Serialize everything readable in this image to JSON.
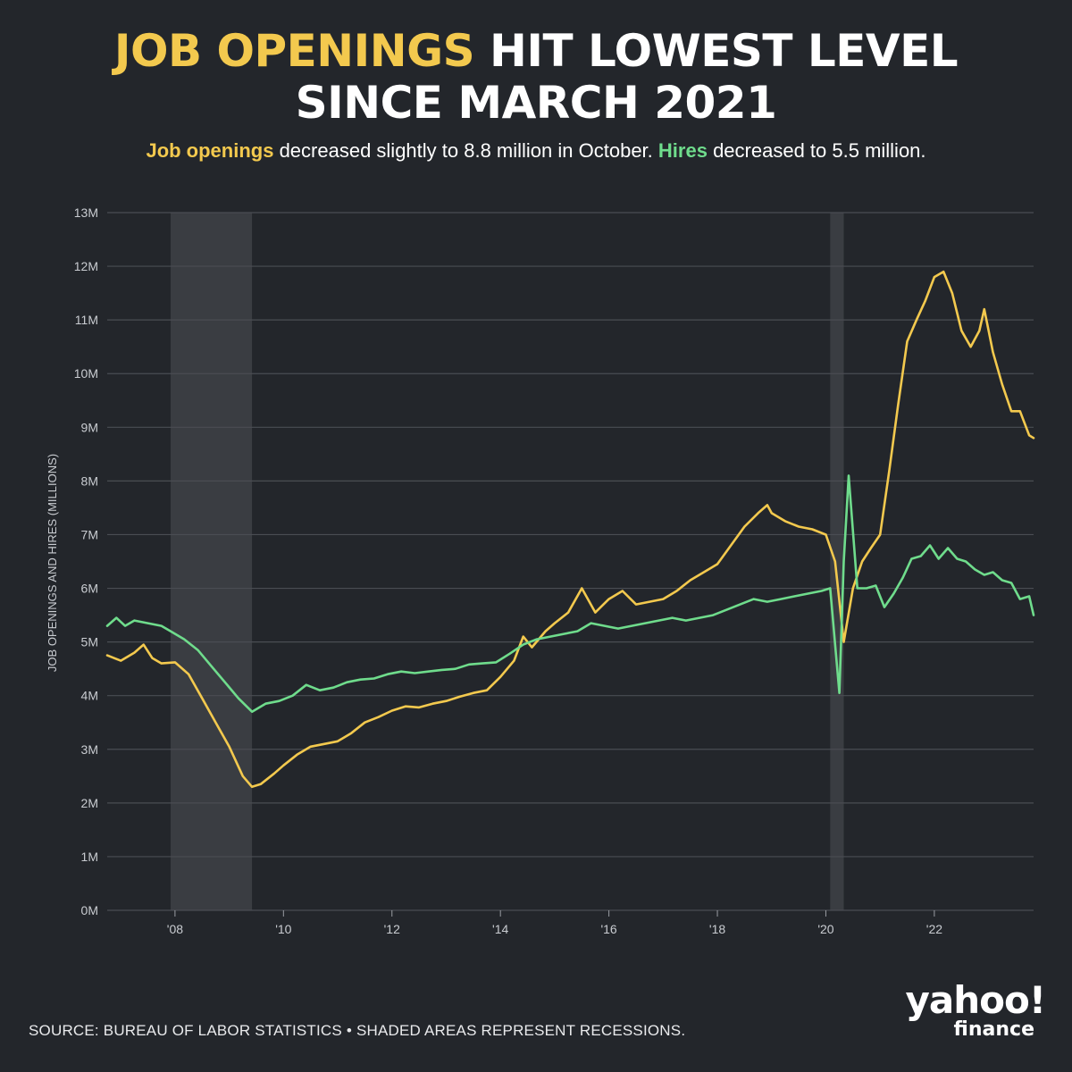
{
  "title": {
    "highlight": "JOB OPENINGS",
    "rest": " HIT LOWEST LEVEL",
    "line2": "SINCE MARCH 2021"
  },
  "subtitle": {
    "jo_label": "Job openings",
    "middle": " decreased slightly to 8.8 million in October. ",
    "hires_label": "Hires",
    "end": " decreased to 5.5 million."
  },
  "source": "SOURCE: BUREAU OF LABOR STATISTICS • SHADED AREAS REPRESENT RECESSIONS.",
  "logo": {
    "brand": "yahoo!",
    "sub": "finance"
  },
  "colors": {
    "background": "#23262b",
    "openings": "#f3c94e",
    "hires": "#6fdc8c",
    "grid": "#4a4d53",
    "recession": "#3a3d42"
  },
  "chart_data": {
    "type": "line",
    "ylabel": "JOB OPENINGS AND HIRES (MILLIONS)",
    "ylim": [
      0,
      13
    ],
    "xlim": [
      2006.75,
      2023.83
    ],
    "y_ticks": [
      {
        "v": 0,
        "label": "0M"
      },
      {
        "v": 1,
        "label": "1M"
      },
      {
        "v": 2,
        "label": "2M"
      },
      {
        "v": 3,
        "label": "3M"
      },
      {
        "v": 4,
        "label": "4M"
      },
      {
        "v": 5,
        "label": "5M"
      },
      {
        "v": 6,
        "label": "6M"
      },
      {
        "v": 7,
        "label": "7M"
      },
      {
        "v": 8,
        "label": "8M"
      },
      {
        "v": 9,
        "label": "9M"
      },
      {
        "v": 10,
        "label": "10M"
      },
      {
        "v": 11,
        "label": "11M"
      },
      {
        "v": 12,
        "label": "12M"
      },
      {
        "v": 13,
        "label": "13M"
      }
    ],
    "x_ticks": [
      {
        "v": 2008,
        "label": "'08"
      },
      {
        "v": 2010,
        "label": "'10"
      },
      {
        "v": 2012,
        "label": "'12"
      },
      {
        "v": 2014,
        "label": "'14"
      },
      {
        "v": 2016,
        "label": "'16"
      },
      {
        "v": 2018,
        "label": "'18"
      },
      {
        "v": 2020,
        "label": "'20"
      },
      {
        "v": 2022,
        "label": "'22"
      }
    ],
    "recessions": [
      [
        2007.92,
        2009.42
      ],
      [
        2020.08,
        2020.33
      ]
    ],
    "grid": "horizontal",
    "series": [
      {
        "name": "Job openings",
        "color": "#f3c94e",
        "points": [
          [
            2006.75,
            4.75
          ],
          [
            2007.0,
            4.65
          ],
          [
            2007.25,
            4.8
          ],
          [
            2007.42,
            4.95
          ],
          [
            2007.58,
            4.7
          ],
          [
            2007.75,
            4.6
          ],
          [
            2008.0,
            4.62
          ],
          [
            2008.25,
            4.4
          ],
          [
            2008.5,
            3.95
          ],
          [
            2008.75,
            3.5
          ],
          [
            2009.0,
            3.05
          ],
          [
            2009.25,
            2.5
          ],
          [
            2009.42,
            2.3
          ],
          [
            2009.58,
            2.35
          ],
          [
            2009.83,
            2.55
          ],
          [
            2010.0,
            2.7
          ],
          [
            2010.25,
            2.9
          ],
          [
            2010.5,
            3.05
          ],
          [
            2010.75,
            3.1
          ],
          [
            2011.0,
            3.15
          ],
          [
            2011.25,
            3.3
          ],
          [
            2011.5,
            3.5
          ],
          [
            2011.75,
            3.6
          ],
          [
            2012.0,
            3.72
          ],
          [
            2012.25,
            3.8
          ],
          [
            2012.5,
            3.78
          ],
          [
            2012.75,
            3.85
          ],
          [
            2013.0,
            3.9
          ],
          [
            2013.25,
            3.98
          ],
          [
            2013.5,
            4.05
          ],
          [
            2013.75,
            4.1
          ],
          [
            2014.0,
            4.35
          ],
          [
            2014.25,
            4.65
          ],
          [
            2014.42,
            5.1
          ],
          [
            2014.58,
            4.9
          ],
          [
            2014.83,
            5.2
          ],
          [
            2015.0,
            5.35
          ],
          [
            2015.25,
            5.55
          ],
          [
            2015.5,
            6.0
          ],
          [
            2015.75,
            5.55
          ],
          [
            2016.0,
            5.8
          ],
          [
            2016.25,
            5.95
          ],
          [
            2016.5,
            5.7
          ],
          [
            2016.75,
            5.75
          ],
          [
            2017.0,
            5.8
          ],
          [
            2017.25,
            5.95
          ],
          [
            2017.5,
            6.15
          ],
          [
            2017.75,
            6.3
          ],
          [
            2018.0,
            6.45
          ],
          [
            2018.25,
            6.8
          ],
          [
            2018.5,
            7.15
          ],
          [
            2018.75,
            7.4
          ],
          [
            2018.92,
            7.55
          ],
          [
            2019.0,
            7.4
          ],
          [
            2019.25,
            7.25
          ],
          [
            2019.5,
            7.15
          ],
          [
            2019.75,
            7.1
          ],
          [
            2020.0,
            7.0
          ],
          [
            2020.17,
            6.5
          ],
          [
            2020.33,
            5.0
          ],
          [
            2020.5,
            6.0
          ],
          [
            2020.67,
            6.5
          ],
          [
            2020.83,
            6.75
          ],
          [
            2021.0,
            7.0
          ],
          [
            2021.17,
            8.2
          ],
          [
            2021.33,
            9.4
          ],
          [
            2021.5,
            10.6
          ],
          [
            2021.67,
            11.0
          ],
          [
            2021.83,
            11.35
          ],
          [
            2022.0,
            11.8
          ],
          [
            2022.17,
            11.9
          ],
          [
            2022.33,
            11.5
          ],
          [
            2022.5,
            10.8
          ],
          [
            2022.67,
            10.5
          ],
          [
            2022.83,
            10.8
          ],
          [
            2022.92,
            11.2
          ],
          [
            2023.08,
            10.4
          ],
          [
            2023.25,
            9.8
          ],
          [
            2023.42,
            9.3
          ],
          [
            2023.58,
            9.3
          ],
          [
            2023.75,
            8.85
          ],
          [
            2023.83,
            8.8
          ]
        ]
      },
      {
        "name": "Hires",
        "color": "#6fdc8c",
        "points": [
          [
            2006.75,
            5.3
          ],
          [
            2006.92,
            5.45
          ],
          [
            2007.08,
            5.3
          ],
          [
            2007.25,
            5.4
          ],
          [
            2007.5,
            5.35
          ],
          [
            2007.75,
            5.3
          ],
          [
            2007.92,
            5.2
          ],
          [
            2008.17,
            5.05
          ],
          [
            2008.42,
            4.85
          ],
          [
            2008.67,
            4.55
          ],
          [
            2008.92,
            4.25
          ],
          [
            2009.17,
            3.95
          ],
          [
            2009.42,
            3.7
          ],
          [
            2009.67,
            3.85
          ],
          [
            2009.92,
            3.9
          ],
          [
            2010.17,
            4.0
          ],
          [
            2010.42,
            4.2
          ],
          [
            2010.67,
            4.1
          ],
          [
            2010.92,
            4.15
          ],
          [
            2011.17,
            4.25
          ],
          [
            2011.42,
            4.3
          ],
          [
            2011.67,
            4.32
          ],
          [
            2011.92,
            4.4
          ],
          [
            2012.17,
            4.45
          ],
          [
            2012.42,
            4.42
          ],
          [
            2012.67,
            4.45
          ],
          [
            2012.92,
            4.48
          ],
          [
            2013.17,
            4.5
          ],
          [
            2013.42,
            4.58
          ],
          [
            2013.67,
            4.6
          ],
          [
            2013.92,
            4.62
          ],
          [
            2014.17,
            4.78
          ],
          [
            2014.42,
            4.95
          ],
          [
            2014.67,
            5.05
          ],
          [
            2014.92,
            5.1
          ],
          [
            2015.17,
            5.15
          ],
          [
            2015.42,
            5.2
          ],
          [
            2015.67,
            5.35
          ],
          [
            2015.92,
            5.3
          ],
          [
            2016.17,
            5.25
          ],
          [
            2016.42,
            5.3
          ],
          [
            2016.67,
            5.35
          ],
          [
            2016.92,
            5.4
          ],
          [
            2017.17,
            5.45
          ],
          [
            2017.42,
            5.4
          ],
          [
            2017.67,
            5.45
          ],
          [
            2017.92,
            5.5
          ],
          [
            2018.17,
            5.6
          ],
          [
            2018.42,
            5.7
          ],
          [
            2018.67,
            5.8
          ],
          [
            2018.92,
            5.75
          ],
          [
            2019.17,
            5.8
          ],
          [
            2019.42,
            5.85
          ],
          [
            2019.67,
            5.9
          ],
          [
            2019.92,
            5.95
          ],
          [
            2020.08,
            6.0
          ],
          [
            2020.25,
            4.05
          ],
          [
            2020.33,
            6.5
          ],
          [
            2020.42,
            8.1
          ],
          [
            2020.58,
            6.0
          ],
          [
            2020.75,
            6.0
          ],
          [
            2020.92,
            6.05
          ],
          [
            2021.08,
            5.65
          ],
          [
            2021.25,
            5.9
          ],
          [
            2021.42,
            6.2
          ],
          [
            2021.58,
            6.55
          ],
          [
            2021.75,
            6.6
          ],
          [
            2021.92,
            6.8
          ],
          [
            2022.08,
            6.55
          ],
          [
            2022.25,
            6.75
          ],
          [
            2022.42,
            6.55
          ],
          [
            2022.58,
            6.5
          ],
          [
            2022.75,
            6.35
          ],
          [
            2022.92,
            6.25
          ],
          [
            2023.08,
            6.3
          ],
          [
            2023.25,
            6.15
          ],
          [
            2023.42,
            6.1
          ],
          [
            2023.58,
            5.8
          ],
          [
            2023.75,
            5.85
          ],
          [
            2023.83,
            5.5
          ]
        ]
      }
    ]
  }
}
